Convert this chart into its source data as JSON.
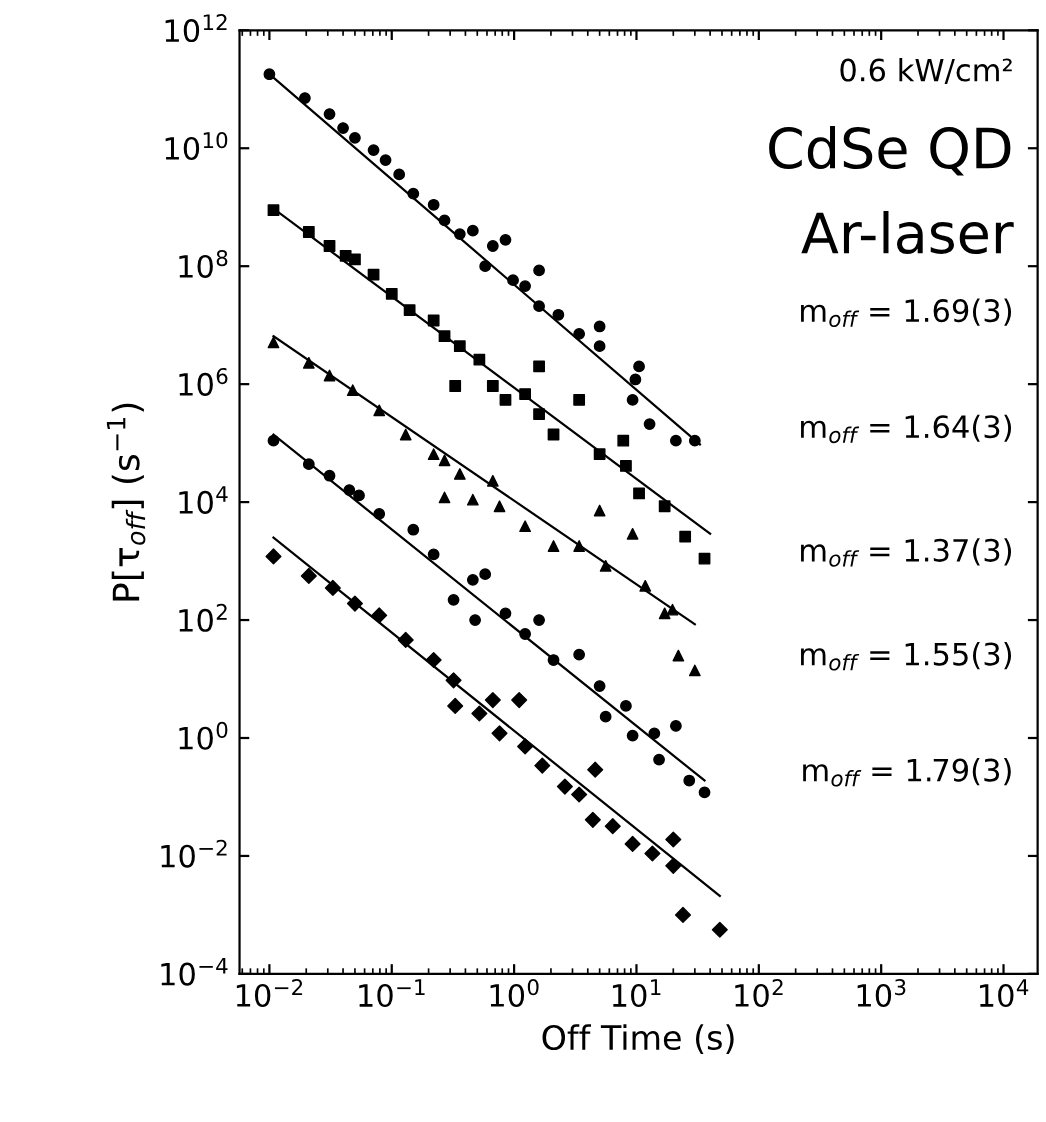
{
  "chart_data": {
    "type": "scatter",
    "xlabel": "Off Time (s)",
    "ylabel": "P[τ$_{off}$] (s$^{−1}$)",
    "log": "xy",
    "xlim": [
      0.0057,
      19000
    ],
    "ylim": [
      0.0001,
      1000000000000
    ],
    "xticks": [
      {
        "value": 0.01,
        "label": "10$^{−2}$"
      },
      {
        "value": 0.1,
        "label": "10$^{−1}$"
      },
      {
        "value": 1,
        "label": "10$^{0}$"
      },
      {
        "value": 10,
        "label": "10$^{1}$"
      },
      {
        "value": 100,
        "label": "10$^{2}$"
      },
      {
        "value": 1000,
        "label": "10$^{3}$"
      },
      {
        "value": 10000,
        "label": "10$^{4}$"
      }
    ],
    "yticks": [
      {
        "value": 0.0001,
        "label": "10$^{−4}$"
      },
      {
        "value": 0.01,
        "label": "10$^{−2}$"
      },
      {
        "value": 1,
        "label": "10$^{0}$"
      },
      {
        "value": 100,
        "label": "10$^{2}$"
      },
      {
        "value": 10000,
        "label": "10$^{4}$"
      },
      {
        "value": 1000000,
        "label": "10$^{6}$"
      },
      {
        "value": 100000000,
        "label": "10$^{8}$"
      },
      {
        "value": 10000000000,
        "label": "10$^{10}$"
      },
      {
        "value": 1000000000000,
        "label": "10$^{12}$"
      }
    ],
    "grid": false,
    "legend": false,
    "annotations": [
      "0.6 kW/cm²",
      "CdSe QD",
      "Ar-laser",
      "m$_{off}$ = 1.69(3)",
      "m$_{off}$ = 1.64(3)",
      "m$_{off}$ = 1.37(3)",
      "m$_{off}$ = 1.55(3)",
      "m$_{off}$ = 1.79(3)"
    ],
    "series": [
      {
        "marker": "circle",
        "color": "#000000",
        "x": [
          0.01,
          0.0195,
          0.031,
          0.04,
          0.05,
          0.071,
          0.089,
          0.115,
          0.15,
          0.22,
          0.27,
          0.36,
          0.46,
          0.58,
          0.67,
          0.85,
          0.98,
          1.23,
          1.6,
          1.6,
          2.3,
          3.4,
          5.0,
          5.0,
          10.5,
          9.8,
          9.3,
          12.8,
          21,
          30
        ],
        "values": [
          180000000000.0,
          71000000000.0,
          38000000000.0,
          22000000000.0,
          15000000000.0,
          9300000000.0,
          6300000000.0,
          3600000000.0,
          1700000000.0,
          1100000000.0,
          600000000.0,
          350000000.0,
          400000000.0,
          100000000.0,
          220000000.0,
          280000000.0,
          58000000.0,
          46000000.0,
          85000000.0,
          21000000.0,
          15000000.0,
          7100000.0,
          9500000.0,
          4400000.0,
          2000000.0,
          1200000.0,
          540000.0,
          210000.0,
          110000.0,
          110000.0
        ]
      },
      {
        "marker": "square",
        "color": "#000000",
        "x": [
          0.0108,
          0.021,
          0.031,
          0.042,
          0.05,
          0.071,
          0.1,
          0.14,
          0.22,
          0.27,
          0.36,
          0.33,
          0.52,
          0.67,
          0.85,
          1.23,
          1.6,
          1.6,
          2.1,
          3.4,
          5.0,
          7.8,
          8.2,
          10.5,
          17,
          25,
          36
        ],
        "values": [
          890000000.0,
          380000000.0,
          220000000.0,
          150000000.0,
          130000000.0,
          72000000.0,
          34000000.0,
          18000000.0,
          12000000.0,
          6500000.0,
          4400000.0,
          930000.0,
          2600000.0,
          930000.0,
          540000.0,
          680000.0,
          2000000.0,
          310000.0,
          140000.0,
          540000.0,
          65000.0,
          110000.0,
          41000.0,
          14000.0,
          8500.0,
          2600.0,
          1100.0
        ]
      },
      {
        "marker": "triangle",
        "color": "#000000",
        "x": [
          0.0108,
          0.021,
          0.031,
          0.048,
          0.079,
          0.13,
          0.22,
          0.27,
          0.36,
          0.27,
          0.67,
          0.46,
          0.76,
          1.23,
          2.1,
          3.4,
          5.0,
          5.6,
          9.3,
          11.8,
          17,
          19.7,
          22,
          30
        ],
        "values": [
          5100000.0,
          2300000.0,
          1400000.0,
          790000.0,
          360000.0,
          140000.0,
          65000.0,
          51000.0,
          30000.0,
          12000.0,
          23000.0,
          11000.0,
          8500.0,
          3900.0,
          1800.0,
          1800.0,
          7200.0,
          830,
          2900.0,
          380,
          130,
          150,
          25,
          14
        ]
      },
      {
        "marker": "circle",
        "color": "#000000",
        "x": [
          0.0108,
          0.021,
          0.031,
          0.045,
          0.054,
          0.079,
          0.15,
          0.22,
          0.32,
          0.46,
          0.58,
          0.48,
          0.85,
          1.23,
          1.6,
          2.1,
          3.4,
          5.0,
          5.6,
          8.2,
          9.3,
          14,
          15.3,
          21,
          27,
          36
        ],
        "values": [
          110000.0,
          44000.0,
          28000.0,
          16000.0,
          13000.0,
          6300.0,
          3400.0,
          1300.0,
          220,
          480,
          600,
          100,
          130,
          58,
          100,
          21,
          26,
          7.6,
          2.3,
          3.5,
          1.1,
          1.2,
          0.43,
          1.6,
          0.19,
          0.12
        ]
      },
      {
        "marker": "diamond",
        "color": "#000000",
        "x": [
          0.0108,
          0.021,
          0.033,
          0.05,
          0.079,
          0.13,
          0.22,
          0.32,
          0.33,
          0.52,
          0.67,
          0.76,
          1.1,
          1.23,
          1.7,
          2.6,
          3.4,
          4.6,
          4.4,
          6.4,
          9.3,
          13.5,
          20,
          20,
          24,
          48
        ],
        "values": [
          1200,
          560,
          350,
          190,
          120,
          46,
          21,
          9.5,
          3.5,
          2.6,
          4.4,
          1.2,
          4.4,
          0.72,
          0.34,
          0.15,
          0.11,
          0.29,
          0.041,
          0.032,
          0.016,
          0.011,
          0.019,
          0.0068,
          0.001,
          0.00056
        ]
      },
      {
        "type": "line",
        "color": "#000000",
        "x": [
          0.01,
          33
        ],
        "values": [
          180000000000.0,
          95000.0
        ]
      },
      {
        "type": "line",
        "color": "#000000",
        "x": [
          0.0108,
          40
        ],
        "values": [
          950000000.0,
          2900.0
        ]
      },
      {
        "type": "line",
        "color": "#000000",
        "x": [
          0.0108,
          30
        ],
        "values": [
          6500000.0,
          85
        ]
      },
      {
        "type": "line",
        "color": "#000000",
        "x": [
          0.0108,
          36
        ],
        "values": [
          140000.0,
          0.19
        ]
      },
      {
        "type": "line",
        "color": "#000000",
        "x": [
          0.0108,
          48
        ],
        "values": [
          2500.0,
          0.0021
        ]
      }
    ]
  }
}
